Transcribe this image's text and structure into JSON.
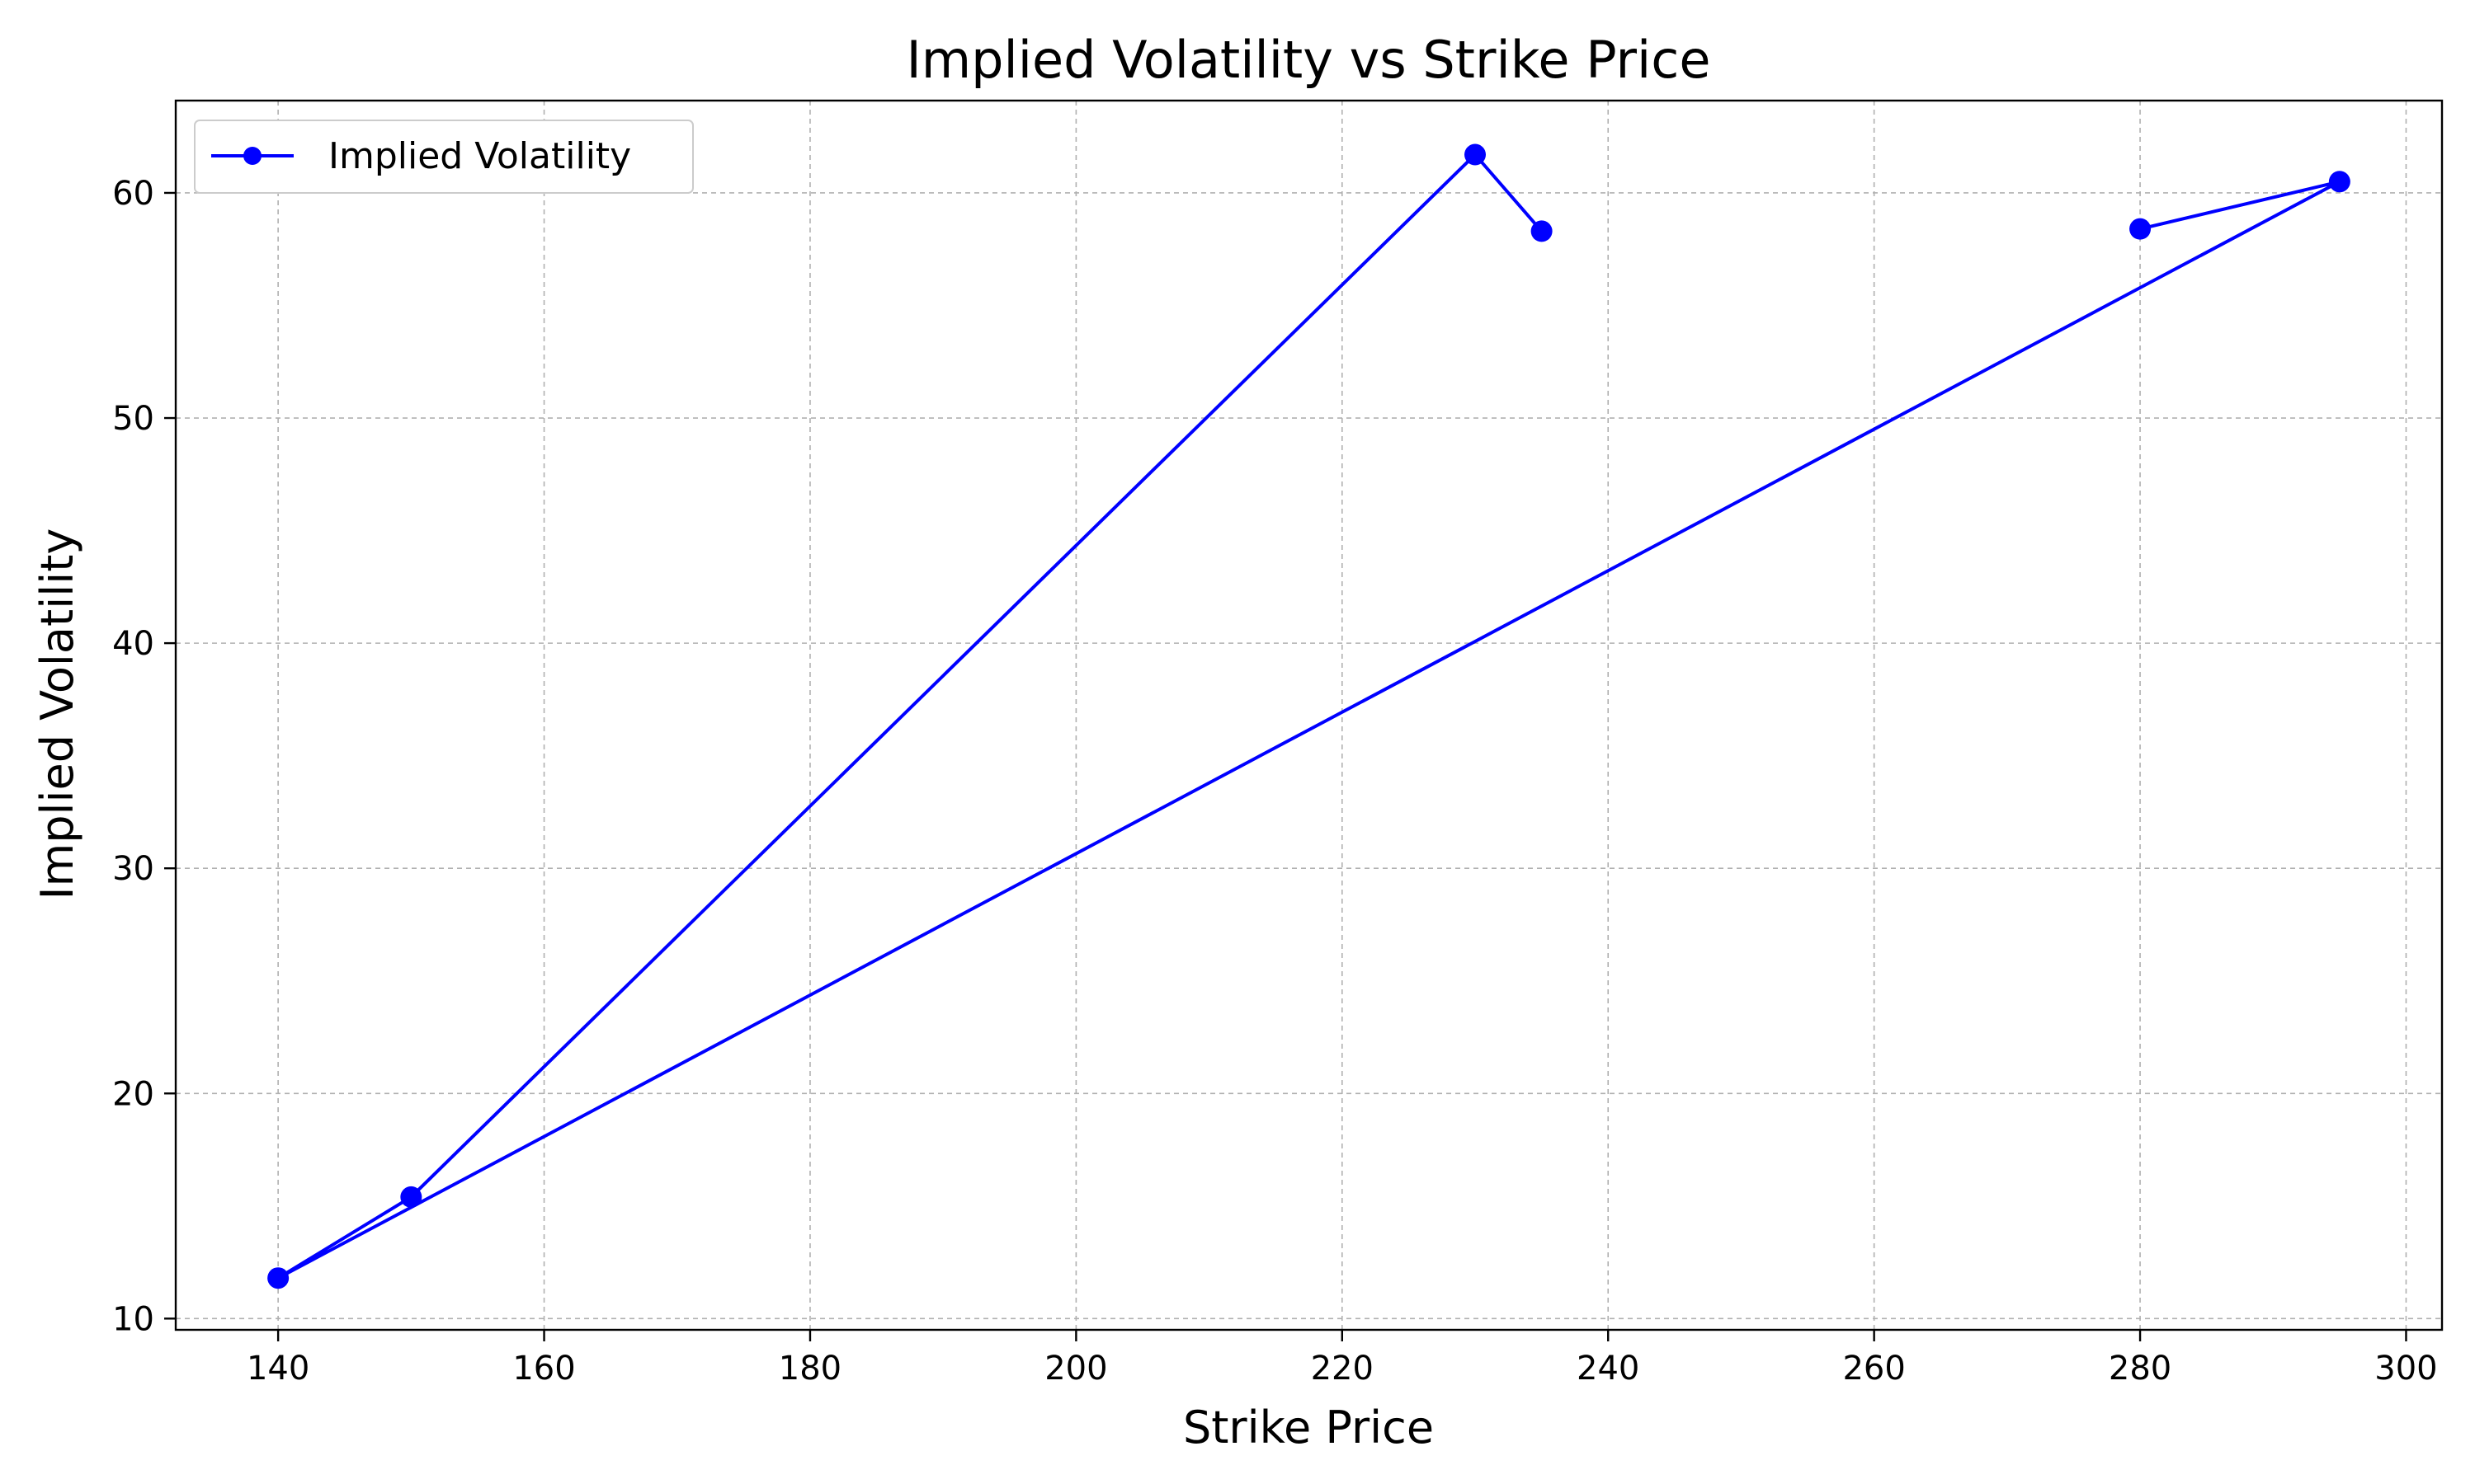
{
  "chart_data": {
    "type": "line",
    "title": "Implied Volatility vs Strike Price",
    "xlabel": "Strike Price",
    "ylabel": "Implied Volatility",
    "xlim": [
      132.3,
      302.7
    ],
    "ylim": [
      9.5,
      64.1
    ],
    "xticks": [
      140,
      160,
      180,
      200,
      220,
      240,
      260,
      280,
      300
    ],
    "yticks": [
      10,
      20,
      30,
      40,
      50,
      60
    ],
    "grid": true,
    "legend_position": "top-left",
    "series": [
      {
        "name": "Implied Volatility",
        "color": "#0000ff",
        "marker": "circle",
        "x": [
          280,
          295,
          140,
          150,
          230,
          235
        ],
        "y": [
          58.4,
          60.5,
          11.8,
          15.4,
          61.7,
          58.3
        ]
      }
    ]
  }
}
